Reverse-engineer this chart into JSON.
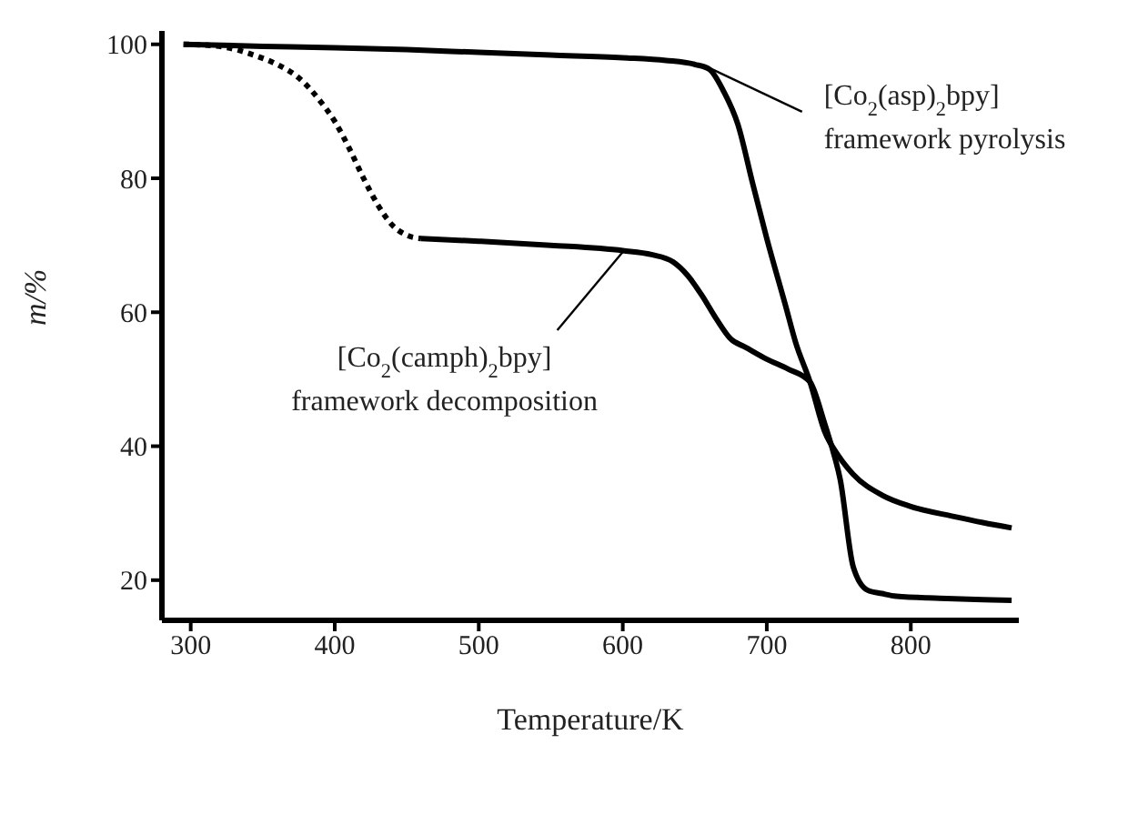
{
  "chart_data": {
    "type": "line",
    "xlabel": "Temperature/K",
    "ylabel": "m/%",
    "xlim": [
      280,
      875
    ],
    "ylim": [
      14,
      102
    ],
    "xticks": [
      300,
      400,
      500,
      600,
      700,
      800
    ],
    "yticks": [
      20,
      40,
      60,
      80,
      100
    ],
    "grid": false,
    "legend": false,
    "marker": "none",
    "series": [
      {
        "color": "#000000",
        "line_style": "solid",
        "x": [
          295,
          350,
          400,
          450,
          500,
          550,
          600,
          630,
          650,
          660,
          670,
          680,
          690,
          700,
          713,
          720,
          730,
          740,
          750,
          760,
          780,
          800,
          830,
          850,
          870
        ],
        "values": [
          100,
          99.7,
          99.5,
          99.2,
          98.8,
          98.4,
          98,
          97.6,
          97,
          96.3,
          93,
          88,
          79.4,
          71,
          61,
          55.5,
          49.6,
          42.3,
          38.5,
          35.8,
          32.7,
          31,
          29.5,
          28.6,
          27.8
        ]
      },
      {
        "color": "#000000",
        "line_style": "dotted",
        "x": [
          295,
          315,
          330,
          345,
          360,
          375,
          390,
          400,
          410,
          420,
          430,
          440,
          450,
          460
        ],
        "values": [
          100,
          99.8,
          99.3,
          98.3,
          97,
          95,
          91.5,
          88.5,
          84.5,
          80,
          76,
          73,
          71.5,
          71
        ]
      },
      {
        "color": "#000000",
        "line_style": "solid",
        "x": [
          460,
          500,
          550,
          600,
          620,
          635,
          645,
          655,
          665,
          675,
          685,
          700,
          715,
          730,
          740,
          745,
          751,
          760,
          770,
          780,
          790,
          820,
          850,
          870
        ],
        "values": [
          71,
          70.6,
          70,
          69.2,
          68.6,
          67.5,
          65.5,
          62.5,
          59,
          56,
          54.8,
          53,
          51.5,
          49.6,
          43.5,
          40,
          35,
          22,
          18.5,
          18,
          17.6,
          17.3,
          17.1,
          17
        ]
      }
    ],
    "annotations": [
      {
        "text": "[Co$_{2}$(asp)$_{2}$bpy]\nframework pyrolysis",
        "x": 655,
        "y": 97
      },
      {
        "text": "[Co$_{2}$(camph)$_{2}$bpy]\nframework decomposition",
        "x": 600,
        "y": 69
      }
    ]
  }
}
